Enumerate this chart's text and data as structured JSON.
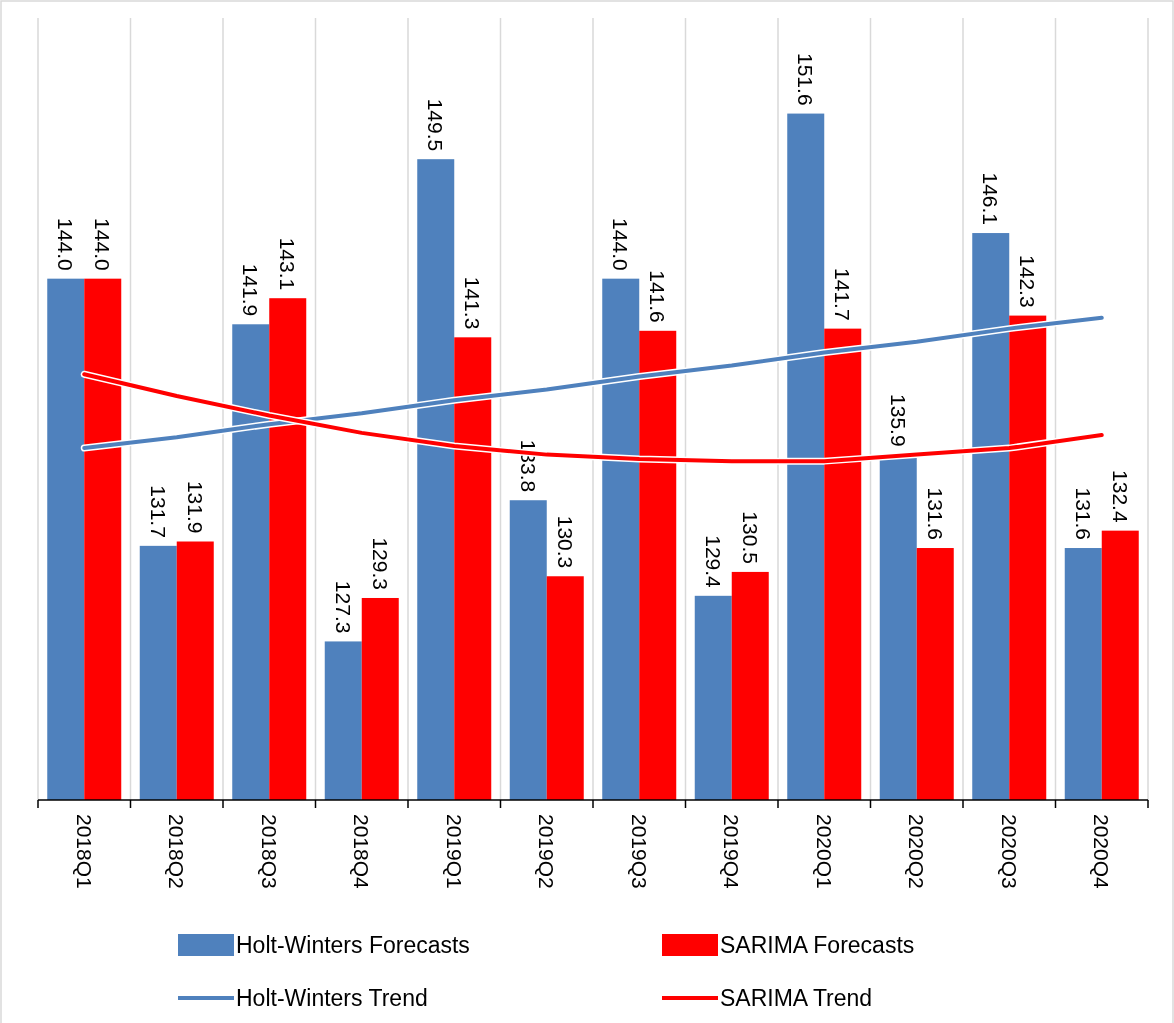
{
  "chart_data": {
    "type": "bar",
    "categories": [
      "2018Q1",
      "2018Q2",
      "2018Q3",
      "2018Q4",
      "2019Q1",
      "2019Q2",
      "2019Q3",
      "2019Q4",
      "2020Q1",
      "2020Q2",
      "2020Q3",
      "2020Q4"
    ],
    "series": [
      {
        "name": "Holt-Winters Forecasts",
        "color": "#4f81bd",
        "values": [
          144.0,
          131.7,
          141.9,
          127.3,
          149.5,
          133.8,
          144.0,
          129.4,
          151.6,
          135.9,
          146.1,
          131.6
        ],
        "value_labels": [
          "144.0",
          "131.7",
          "141.9",
          "127.3",
          "149.5",
          "133.8",
          "144.0",
          "129.4",
          "151.6",
          "135.9",
          "146.1",
          "131.6"
        ]
      },
      {
        "name": "SARIMA Forecasts",
        "color": "#ff0000",
        "values": [
          144.0,
          131.9,
          143.1,
          129.3,
          141.3,
          130.3,
          141.6,
          130.5,
          141.7,
          131.6,
          142.3,
          132.4
        ],
        "value_labels": [
          "144.0",
          "131.9",
          "143.1",
          "129.3",
          "141.3",
          "130.3",
          "141.6",
          "130.5",
          "141.7",
          "131.6",
          "142.3",
          "132.4"
        ]
      },
      {
        "name": "Holt-Winters Trend",
        "type": "line",
        "color": "#4f81bd",
        "values": [
          136.2,
          136.7,
          137.3,
          137.8,
          138.4,
          138.9,
          139.5,
          140.0,
          140.6,
          141.1,
          141.7,
          142.2
        ]
      },
      {
        "name": "SARIMA Trend",
        "type": "line",
        "color": "#ff0000",
        "values": [
          139.6,
          138.6,
          137.7,
          136.9,
          136.3,
          135.9,
          135.7,
          135.6,
          135.6,
          135.9,
          136.2,
          136.8
        ]
      }
    ],
    "ylim": [
      120,
      156
    ],
    "tick_labels": "x",
    "grid": "x",
    "legend": "bottom",
    "line_style": "solid"
  }
}
